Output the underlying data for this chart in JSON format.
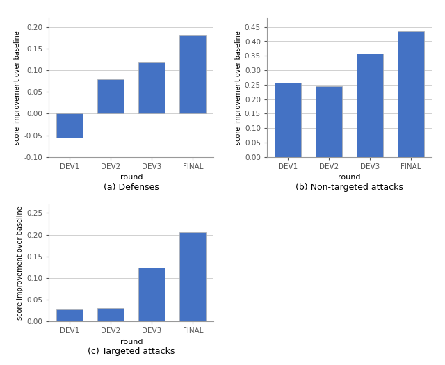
{
  "categories": [
    "DEV1",
    "DEV2",
    "DEV3",
    "FINAL"
  ],
  "defenses": {
    "values": [
      -0.055,
      0.08,
      0.12,
      0.18
    ],
    "ylim": [
      -0.1,
      0.22
    ],
    "yticks": [
      -0.1,
      -0.05,
      0.0,
      0.05,
      0.1,
      0.15,
      0.2
    ],
    "title": "(a) Defenses"
  },
  "non_targeted": {
    "values": [
      0.257,
      0.245,
      0.358,
      0.435
    ],
    "ylim": [
      0.0,
      0.48
    ],
    "yticks": [
      0.0,
      0.05,
      0.1,
      0.15,
      0.2,
      0.25,
      0.3,
      0.35,
      0.4,
      0.45
    ],
    "title": "(b) Non-targeted attacks"
  },
  "targeted": {
    "values": [
      0.027,
      0.03,
      0.123,
      0.205
    ],
    "ylim": [
      0.0,
      0.27
    ],
    "yticks": [
      0.0,
      0.05,
      0.1,
      0.15,
      0.2,
      0.25
    ],
    "title": "(c) Targeted attacks"
  },
  "bar_color": "#4472C4",
  "bar_edgecolor": "#b0b0b0",
  "ylabel": "score improvement over baseline",
  "xlabel": "round",
  "background_color": "#ffffff",
  "grid_color": "#d0d0d0",
  "figsize": [
    6.4,
    5.25
  ],
  "dpi": 100
}
